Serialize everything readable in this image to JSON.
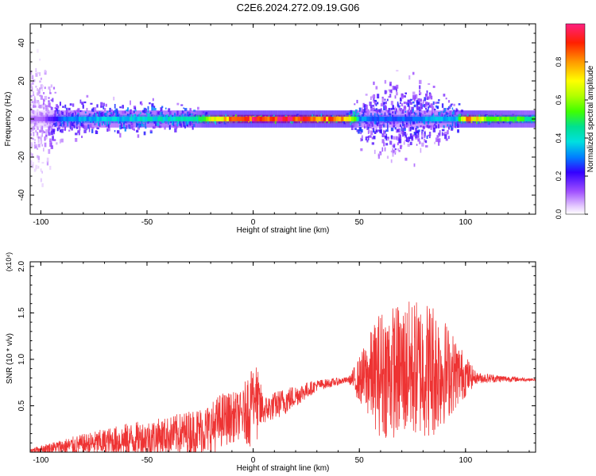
{
  "title": "C2E6.2024.272.09.19.G06",
  "chart_data": [
    {
      "type": "heatmap",
      "name": "spectrogram",
      "xlabel": "Height of straight line (km)",
      "ylabel": "Frequency (Hz)",
      "xlim": [
        -105,
        133
      ],
      "ylim": [
        -50,
        50
      ],
      "xticks": [
        -100,
        -50,
        0,
        50,
        100
      ],
      "yticks": [
        -40,
        -20,
        0,
        20,
        40
      ],
      "colorbar": {
        "label": "Normalized spectral amplitude",
        "range": [
          0,
          1
        ],
        "ticks": [
          "0.0",
          "0.2",
          "0.4",
          "0.6",
          "0.8"
        ]
      },
      "band_amplitude_by_height": [
        {
          "x": -100,
          "amp": 0.1,
          "spread": 40
        },
        {
          "x": -90,
          "amp": 0.3,
          "spread": 14
        },
        {
          "x": -50,
          "amp": 0.38,
          "spread": 12
        },
        {
          "x": -30,
          "amp": 0.4,
          "spread": 8
        },
        {
          "x": -18,
          "amp": 0.7,
          "spread": 3
        },
        {
          "x": 0,
          "amp": 0.9,
          "spread": 2
        },
        {
          "x": 20,
          "amp": 0.9,
          "spread": 2
        },
        {
          "x": 44,
          "amp": 0.75,
          "spread": 3
        },
        {
          "x": 50,
          "amp": 0.3,
          "spread": 18
        },
        {
          "x": 65,
          "amp": 0.25,
          "spread": 30
        },
        {
          "x": 80,
          "amp": 0.3,
          "spread": 25
        },
        {
          "x": 95,
          "amp": 0.35,
          "spread": 12
        },
        {
          "x": 100,
          "amp": 0.8,
          "spread": 3
        },
        {
          "x": 110,
          "amp": 0.55,
          "spread": 3
        },
        {
          "x": 133,
          "amp": 0.45,
          "spread": 3
        }
      ]
    },
    {
      "type": "line",
      "name": "snr",
      "xlabel": "Height of straight line (km)",
      "ylabel": "SNR (10 * v/v)",
      "y_multiplier": "(x10⁴)",
      "xlim": [
        -105,
        133
      ],
      "ylim": [
        0,
        2.05
      ],
      "xticks": [
        -100,
        -50,
        0,
        50,
        100
      ],
      "yticks": [
        "0.5",
        "1.0",
        "1.5",
        "2.0"
      ],
      "color": "#ee3333",
      "envelope": [
        {
          "x": -105,
          "mean": 0.02,
          "amp": 0.02
        },
        {
          "x": -90,
          "mean": 0.06,
          "amp": 0.08
        },
        {
          "x": -60,
          "mean": 0.13,
          "amp": 0.18
        },
        {
          "x": -40,
          "mean": 0.18,
          "amp": 0.2
        },
        {
          "x": -20,
          "mean": 0.25,
          "amp": 0.28
        },
        {
          "x": -15,
          "mean": 0.35,
          "amp": 0.3
        },
        {
          "x": -5,
          "mean": 0.4,
          "amp": 0.25
        },
        {
          "x": 0,
          "mean": 0.55,
          "amp": 0.55
        },
        {
          "x": 5,
          "mean": 0.45,
          "amp": 0.15
        },
        {
          "x": 15,
          "mean": 0.55,
          "amp": 0.15
        },
        {
          "x": 30,
          "mean": 0.72,
          "amp": 0.06
        },
        {
          "x": 45,
          "mean": 0.78,
          "amp": 0.03
        },
        {
          "x": 50,
          "mean": 0.78,
          "amp": 0.25
        },
        {
          "x": 60,
          "mean": 0.85,
          "amp": 0.7
        },
        {
          "x": 75,
          "mean": 0.9,
          "amp": 0.75
        },
        {
          "x": 85,
          "mean": 0.9,
          "amp": 0.75
        },
        {
          "x": 95,
          "mean": 0.85,
          "amp": 0.4
        },
        {
          "x": 105,
          "mean": 0.8,
          "amp": 0.06
        },
        {
          "x": 133,
          "mean": 0.78,
          "amp": 0.01
        }
      ]
    }
  ]
}
